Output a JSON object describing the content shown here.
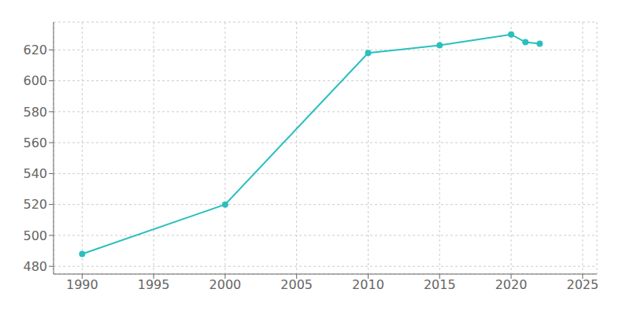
{
  "chart_data": {
    "type": "line",
    "x": [
      1990,
      2000,
      2010,
      2015,
      2020,
      2021,
      2022
    ],
    "values": [
      488,
      520,
      618,
      623,
      630,
      625,
      624
    ],
    "color": "#2BBFBF",
    "marker": "circle",
    "xlim": [
      1988,
      2026
    ],
    "ylim": [
      475,
      638
    ],
    "xticks": [
      1990,
      1995,
      2000,
      2005,
      2010,
      2015,
      2020,
      2025
    ],
    "yticks": [
      480,
      500,
      520,
      540,
      560,
      580,
      600,
      620
    ],
    "grid": true
  }
}
